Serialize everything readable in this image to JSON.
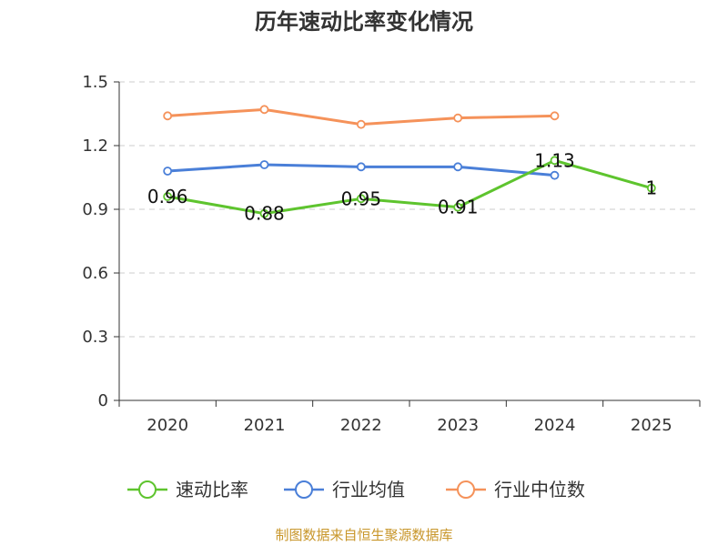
{
  "chart_data": {
    "type": "line",
    "title": "历年速动比率变化情况",
    "categories": [
      "2020",
      "2021",
      "2022",
      "2023",
      "2024",
      "2025"
    ],
    "y_ticks": [
      "0",
      "0.3",
      "0.6",
      "0.9",
      "1.2",
      "1.5"
    ],
    "ylim": [
      0,
      1.5
    ],
    "grid": true,
    "legend_position": "bottom",
    "series": [
      {
        "name": "速动比率",
        "color": "#5ec42e",
        "values": [
          0.96,
          0.88,
          0.95,
          0.91,
          1.13,
          1
        ],
        "labels": [
          "0.96",
          "0.88",
          "0.95",
          "0.91",
          "1.13",
          "1"
        ]
      },
      {
        "name": "行业均值",
        "color": "#4a7fd8",
        "values": [
          1.08,
          1.11,
          1.1,
          1.1,
          1.06,
          null
        ]
      },
      {
        "name": "行业中位数",
        "color": "#f5925a",
        "values": [
          1.34,
          1.37,
          1.3,
          1.33,
          1.34,
          null
        ]
      }
    ],
    "source": "制图数据来自恒生聚源数据库"
  }
}
